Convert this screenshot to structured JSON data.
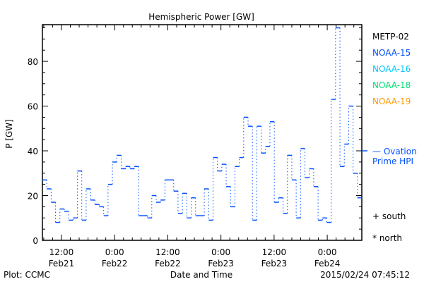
{
  "chart_data": {
    "type": "line",
    "title": "Hemispheric Power [GW]",
    "xlabel": "Date and Time",
    "ylabel": "P [GW]",
    "ylim": [
      0,
      96.4
    ],
    "xlim_hours": [
      -4.3,
      67.8
    ],
    "yticks": [
      0,
      20,
      40,
      60,
      80
    ],
    "xticks": [
      {
        "hour": 0,
        "time": "12:00",
        "date": "Feb21"
      },
      {
        "hour": 12,
        "time": "0:00",
        "date": "Feb22"
      },
      {
        "hour": 24,
        "time": "12:00",
        "date": "Feb22"
      },
      {
        "hour": 36,
        "time": "0:00",
        "date": "Feb23"
      },
      {
        "hour": 48,
        "time": "12:00",
        "date": "Feb23"
      },
      {
        "hour": 60,
        "time": "0:00",
        "date": "Feb24"
      }
    ],
    "series": [
      {
        "name": "NOAA-15",
        "color": "#0050ff",
        "values": [
          27,
          23,
          17,
          8,
          14,
          13,
          9,
          10,
          31,
          9,
          23,
          18,
          16,
          15,
          11,
          25,
          35,
          38,
          32,
          33,
          32,
          33,
          11,
          11,
          10,
          20,
          17,
          18,
          27,
          27,
          22,
          12,
          21,
          10,
          19,
          11,
          11,
          23,
          9,
          37,
          31,
          34,
          24,
          15,
          33,
          37,
          55,
          51,
          9,
          51,
          39,
          42,
          53,
          17,
          19,
          12,
          38,
          27,
          10,
          41,
          28,
          32,
          24,
          9,
          10,
          8,
          63,
          95,
          33,
          43,
          60,
          30,
          19
        ]
      }
    ],
    "ovation_prime_hpi": 40,
    "legend": [
      "METP-02",
      "NOAA-15",
      "NOAA-16",
      "NOAA-18",
      "NOAA-19"
    ],
    "legend_colors": [
      "#000000",
      "#0050ff",
      "#00c8ff",
      "#00e070",
      "#ff9900"
    ],
    "legend_placement": "right",
    "hpi_label": [
      "— Ovation",
      "Prime HPI"
    ],
    "hpi_color": "#0050ff",
    "markers": [
      "+ south",
      "* north"
    ]
  },
  "footer": {
    "left": "Plot: CCMC",
    "right": "2015/02/24 07:45:12"
  }
}
